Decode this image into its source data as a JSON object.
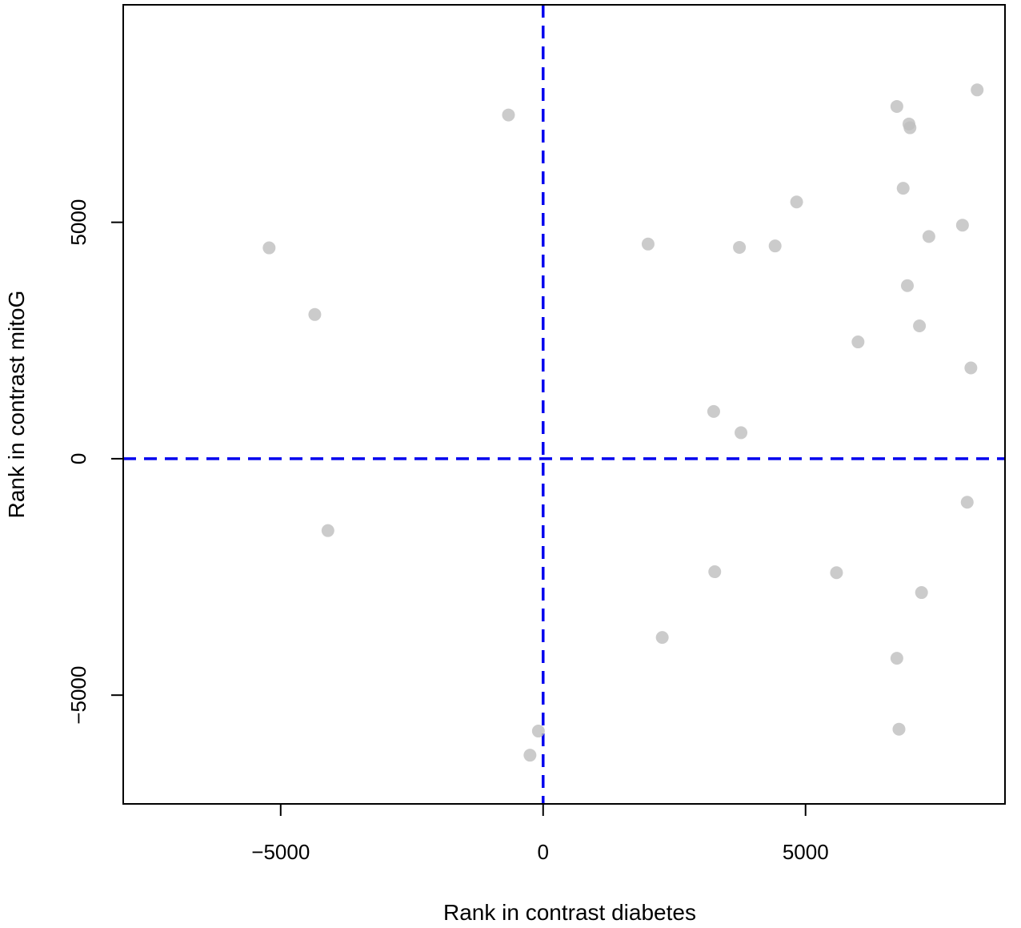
{
  "chart_data": {
    "type": "scatter",
    "title": "",
    "xlabel": "Rank in contrast diabetes",
    "ylabel": "Rank in contrast mitoG",
    "xlim": [
      -8000,
      8800
    ],
    "ylim": [
      -7300,
      9600
    ],
    "x_ticks": [
      {
        "value": -5000,
        "label": "−5000"
      },
      {
        "value": 0,
        "label": "0"
      },
      {
        "value": 5000,
        "label": "5000"
      }
    ],
    "y_ticks": [
      {
        "value": -5000,
        "label": "−5000"
      },
      {
        "value": 0,
        "label": "0"
      },
      {
        "value": 5000,
        "label": "5000"
      }
    ],
    "reference_lines": [
      {
        "orientation": "vertical",
        "value": 0,
        "color": "#0000ee",
        "style": "dashed"
      },
      {
        "orientation": "horizontal",
        "value": 0,
        "color": "#0000ee",
        "style": "dashed"
      }
    ],
    "point_color": "#bebebe",
    "grid": false,
    "points": [
      {
        "x": -5220,
        "y": 4460
      },
      {
        "x": -4350,
        "y": 3050
      },
      {
        "x": -4100,
        "y": -1520
      },
      {
        "x": -660,
        "y": 7270
      },
      {
        "x": -90,
        "y": -5760
      },
      {
        "x": -250,
        "y": -6270
      },
      {
        "x": 2000,
        "y": 4540
      },
      {
        "x": 2270,
        "y": -3780
      },
      {
        "x": 3250,
        "y": 1000
      },
      {
        "x": 3270,
        "y": -2390
      },
      {
        "x": 3740,
        "y": 4470
      },
      {
        "x": 3770,
        "y": 550
      },
      {
        "x": 4420,
        "y": 4500
      },
      {
        "x": 4830,
        "y": 5430
      },
      {
        "x": 5590,
        "y": -2410
      },
      {
        "x": 6000,
        "y": 2470
      },
      {
        "x": 6740,
        "y": 7450
      },
      {
        "x": 6740,
        "y": -4220
      },
      {
        "x": 6780,
        "y": -5720
      },
      {
        "x": 6860,
        "y": 5720
      },
      {
        "x": 6940,
        "y": 3660
      },
      {
        "x": 6970,
        "y": 7080
      },
      {
        "x": 6990,
        "y": 7000
      },
      {
        "x": 7170,
        "y": 2810
      },
      {
        "x": 7210,
        "y": -2830
      },
      {
        "x": 7350,
        "y": 4700
      },
      {
        "x": 7990,
        "y": 4940
      },
      {
        "x": 8080,
        "y": -920
      },
      {
        "x": 8150,
        "y": 1920
      },
      {
        "x": 8270,
        "y": 7800
      }
    ]
  }
}
